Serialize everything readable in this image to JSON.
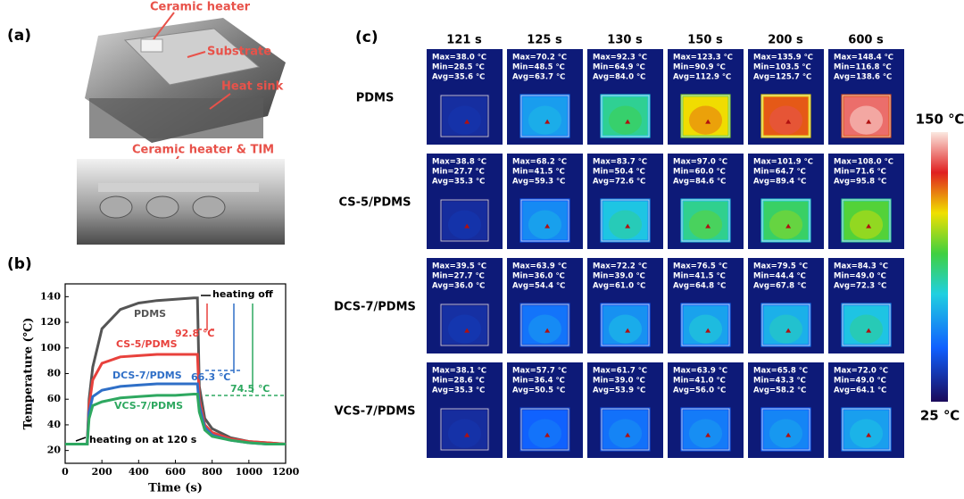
{
  "panel_labels": [
    "(a)",
    "(b)",
    "(c)"
  ],
  "photo_labels": [
    "Ceramic heater",
    "Substrate",
    "Heat sink",
    "Ceramic heater & TIM"
  ],
  "chart_data": {
    "type": "line",
    "xlabel": "Time (s)",
    "ylabel": "Temperature (℃)",
    "x": [
      0,
      60,
      110,
      120,
      130,
      150,
      200,
      300,
      400,
      500,
      600,
      700,
      720,
      730,
      760,
      800,
      900,
      1000,
      1100,
      1200
    ],
    "series": [
      {
        "name": "PDMS",
        "color": "#555555",
        "values": [
          25,
          25,
          25,
          25,
          60,
          85,
          115,
          130,
          135,
          137,
          138,
          139,
          139,
          70,
          45,
          37,
          30,
          27,
          26,
          25
        ]
      },
      {
        "name": "CS-5/PDMS",
        "color": "#e8413c",
        "values": [
          25,
          25,
          25,
          25,
          55,
          75,
          88,
          93,
          94,
          95,
          95,
          95,
          95,
          60,
          40,
          34,
          29,
          27,
          26,
          25
        ]
      },
      {
        "name": "DCS-7/PDMS",
        "color": "#2f6fc7",
        "values": [
          25,
          25,
          25,
          25,
          50,
          62,
          67,
          70,
          71,
          72,
          72,
          72,
          72,
          55,
          38,
          32,
          28,
          26,
          25,
          25
        ]
      },
      {
        "name": "VCS-7/PDMS",
        "color": "#2ea860",
        "values": [
          25,
          25,
          25,
          25,
          45,
          55,
          58,
          61,
          62,
          63,
          63,
          64,
          64,
          50,
          36,
          31,
          28,
          26,
          25,
          25
        ]
      }
    ],
    "xlim": [
      0,
      1200
    ],
    "xticks": [
      0,
      200,
      400,
      600,
      800,
      1000,
      1200
    ],
    "ylim": [
      10,
      150
    ],
    "yticks": [
      20,
      40,
      60,
      80,
      100,
      120,
      140
    ],
    "annotations": [
      "heating off",
      "heating on at 120 s",
      "92.8 ℃",
      "66.3 ℃",
      "74.5 ℃"
    ]
  },
  "thermal": {
    "times": [
      "121 s",
      "125 s",
      "130 s",
      "150 s",
      "200 s",
      "600 s"
    ],
    "rows": [
      {
        "name": "PDMS",
        "cells": [
          [
            "Max=38.0 ℃",
            "Min=28.5 ℃",
            "Avg=35.6 ℃"
          ],
          [
            "Max=70.2 ℃",
            "Min=48.5 ℃",
            "Avg=63.7 ℃"
          ],
          [
            "Max=92.3 ℃",
            "Min=64.9 ℃",
            "Avg=84.0 ℃"
          ],
          [
            "Max=123.3 ℃",
            "Min=90.9 ℃",
            "Avg=112.9 ℃"
          ],
          [
            "Max=135.9 ℃",
            "Min=103.5 ℃",
            "Avg=125.7 ℃"
          ],
          [
            "Max=148.4 ℃",
            "Min=116.8 ℃",
            "Avg=138.6 ℃"
          ]
        ]
      },
      {
        "name": "CS-5/PDMS",
        "cells": [
          [
            "Max=38.8 ℃",
            "Min=27.7 ℃",
            "Avg=35.3 ℃"
          ],
          [
            "Max=68.2 ℃",
            "Min=41.5 ℃",
            "Avg=59.3 ℃"
          ],
          [
            "Max=83.7 ℃",
            "Min=50.4 ℃",
            "Avg=72.6 ℃"
          ],
          [
            "Max=97.0 ℃",
            "Min=60.0 ℃",
            "Avg=84.6 ℃"
          ],
          [
            "Max=101.9 ℃",
            "Min=64.7 ℃",
            "Avg=89.4 ℃"
          ],
          [
            "Max=108.0 ℃",
            "Min=71.6 ℃",
            "Avg=95.8 ℃"
          ]
        ]
      },
      {
        "name": "DCS-7/PDMS",
        "cells": [
          [
            "Max=39.5 ℃",
            "Min=27.7 ℃",
            "Avg=36.0 ℃"
          ],
          [
            "Max=63.9 ℃",
            "Min=36.0 ℃",
            "Avg=54.4 ℃"
          ],
          [
            "Max=72.2 ℃",
            "Min=39.0 ℃",
            "Avg=61.0 ℃"
          ],
          [
            "Max=76.5 ℃",
            "Min=41.5 ℃",
            "Avg=64.8 ℃"
          ],
          [
            "Max=79.5 ℃",
            "Min=44.4 ℃",
            "Avg=67.8 ℃"
          ],
          [
            "Max=84.3 ℃",
            "Min=49.0 ℃",
            "Avg=72.3 ℃"
          ]
        ]
      },
      {
        "name": "VCS-7/PDMS",
        "cells": [
          [
            "Max=38.1 ℃",
            "Min=28.6 ℃",
            "Avg=35.3 ℃"
          ],
          [
            "Max=57.7 ℃",
            "Min=36.4 ℃",
            "Avg=50.5 ℃"
          ],
          [
            "Max=61.7 ℃",
            "Min=39.0 ℃",
            "Avg=53.9 ℃"
          ],
          [
            "Max=63.9 ℃",
            "Min=41.0 ℃",
            "Avg=56.0 ℃"
          ],
          [
            "Max=65.8 ℃",
            "Min=43.3 ℃",
            "Avg=58.2 ℃"
          ],
          [
            "Max=72.0 ℃",
            "Min=49.0 ℃",
            "Avg=64.1 ℃"
          ]
        ]
      }
    ],
    "colorbar": [
      "150 ℃",
      "25 ℃"
    ]
  }
}
